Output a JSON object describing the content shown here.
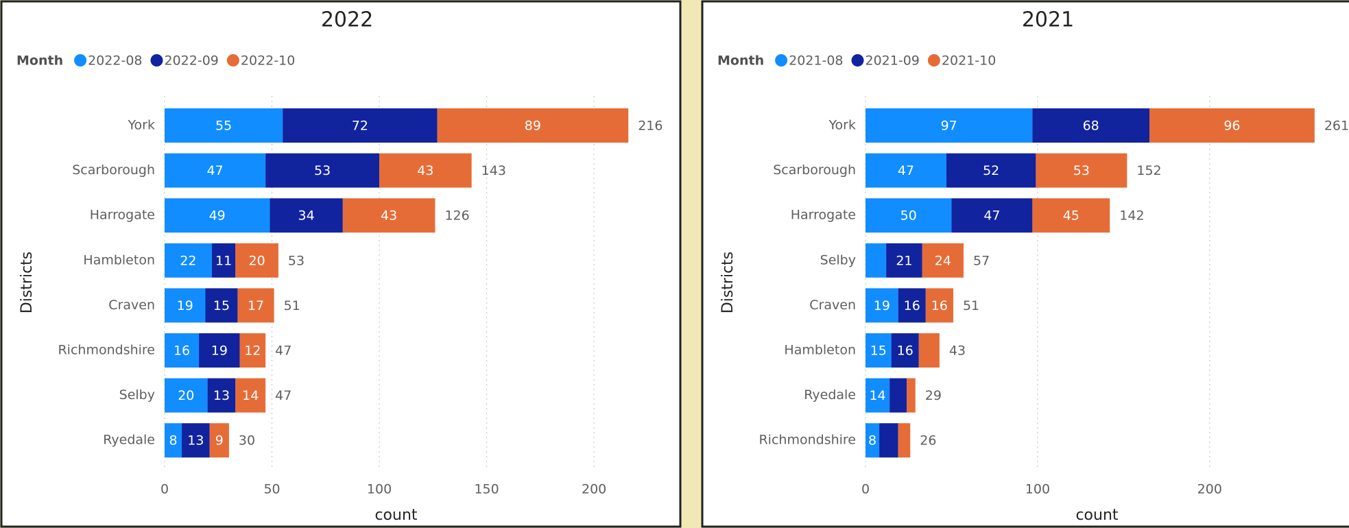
{
  "chart_data": [
    {
      "type": "stacked-barh",
      "title": "2022",
      "legend_title": "Month",
      "x_label": "count",
      "y_label": "Districts",
      "categories": [
        "York",
        "Scarborough",
        "Harrogate",
        "Hambleton",
        "Craven",
        "Richmondshire",
        "Selby",
        "Ryedale"
      ],
      "series": [
        {
          "name": "2022-08",
          "color": "#118dff",
          "values": [
            55,
            47,
            49,
            22,
            19,
            16,
            20,
            8
          ],
          "value_labels": [
            "55",
            "47",
            "49",
            "22",
            "19",
            "16",
            "20",
            "8"
          ]
        },
        {
          "name": "2022-09",
          "color": "#12239e",
          "values": [
            72,
            53,
            34,
            11,
            15,
            19,
            13,
            13
          ],
          "value_labels": [
            "72",
            "53",
            "34",
            "11",
            "15",
            "19",
            "13",
            "13"
          ]
        },
        {
          "name": "2022-10",
          "color": "#e66c37",
          "values": [
            89,
            43,
            43,
            20,
            17,
            12,
            14,
            9
          ],
          "value_labels": [
            "89",
            "43",
            "43",
            "20",
            "17",
            "12",
            "14",
            "9"
          ]
        }
      ],
      "totals": [
        216,
        143,
        126,
        53,
        51,
        47,
        47,
        30
      ],
      "xlim": [
        0,
        222
      ],
      "xticks": [
        0,
        50,
        100,
        150,
        200
      ],
      "grid": true
    },
    {
      "type": "stacked-barh",
      "title": "2021",
      "legend_title": "Month",
      "x_label": "count",
      "y_label": "Districts",
      "categories": [
        "York",
        "Scarborough",
        "Harrogate",
        "Selby",
        "Craven",
        "Hambleton",
        "Ryedale",
        "Richmondshire"
      ],
      "series": [
        {
          "name": "2021-08",
          "color": "#118dff",
          "values": [
            97,
            47,
            50,
            12,
            19,
            15,
            14,
            8
          ],
          "value_labels": [
            "97",
            "47",
            "50",
            null,
            "19",
            "15",
            "14",
            "8"
          ]
        },
        {
          "name": "2021-09",
          "color": "#12239e",
          "values": [
            68,
            52,
            47,
            21,
            16,
            16,
            10,
            11
          ],
          "value_labels": [
            "68",
            "52",
            "47",
            "21",
            "16",
            "16",
            null,
            null
          ]
        },
        {
          "name": "2021-10",
          "color": "#e66c37",
          "values": [
            96,
            53,
            45,
            24,
            16,
            12,
            5,
            7
          ],
          "value_labels": [
            "96",
            "53",
            "45",
            "24",
            "16",
            null,
            null,
            null
          ]
        }
      ],
      "totals": [
        261,
        152,
        142,
        57,
        51,
        43,
        29,
        26
      ],
      "xlim": [
        0,
        277
      ],
      "xticks": [
        0,
        100,
        200
      ],
      "grid": true
    }
  ]
}
